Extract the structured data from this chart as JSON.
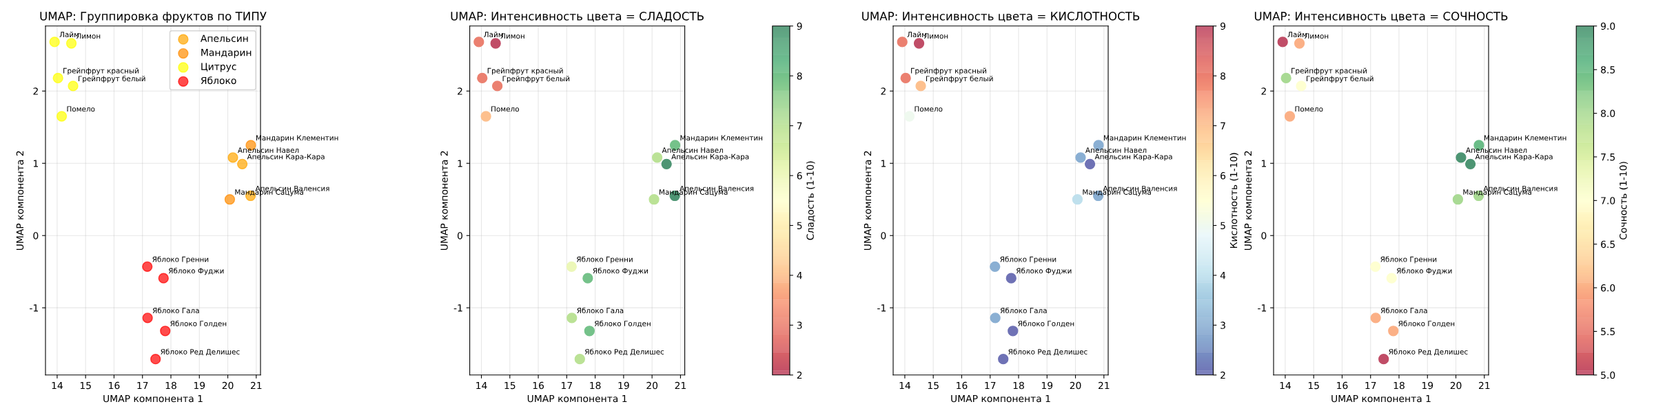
{
  "chart_data": [
    {
      "type": "scatter",
      "title": "UMAP: Группировка фруктов по ТИПУ",
      "xlabel": "UMAP компонента 1",
      "ylabel": "UMAP компонента 2",
      "xlim": [
        13.59,
        21.15
      ],
      "ylim": [
        -1.93,
        2.9
      ],
      "xticks": [
        14,
        15,
        16,
        17,
        18,
        19,
        20,
        21
      ],
      "yticks": [
        -1,
        0,
        1,
        2
      ],
      "grid": true,
      "marker": "circle",
      "legend": "top right",
      "series": [
        {
          "name": "Апельсин",
          "color": "#ffa500",
          "x": [
            20.18,
            20.51,
            20.8
          ],
          "values": [
            1.08,
            0.99,
            0.55
          ]
        },
        {
          "name": "Мандарин",
          "color": "#ff8c00",
          "x": [
            20.81,
            20.07
          ],
          "values": [
            1.25,
            0.5
          ]
        },
        {
          "name": "Цитрус",
          "color": "#ffff00",
          "x": [
            13.91,
            14.5,
            14.03,
            14.56,
            14.16
          ],
          "values": [
            2.68,
            2.66,
            2.18,
            2.07,
            1.65
          ]
        },
        {
          "name": "Яблоко",
          "color": "#ff0000",
          "x": [
            17.17,
            17.74,
            17.18,
            17.8,
            17.46
          ],
          "values": [
            -0.43,
            -0.59,
            -1.14,
            -1.32,
            -1.71
          ]
        }
      ],
      "annotations": [
        {
          "text": "Лайм",
          "x": 13.91,
          "y": 2.68
        },
        {
          "text": "Лимон",
          "x": 14.5,
          "y": 2.66
        },
        {
          "text": "Грейпфрут красный",
          "x": 14.03,
          "y": 2.18
        },
        {
          "text": "Грейпфрут белый",
          "x": 14.56,
          "y": 2.07
        },
        {
          "text": "Помело",
          "x": 14.16,
          "y": 1.65
        },
        {
          "text": "Мандарин Клементин",
          "x": 20.81,
          "y": 1.25
        },
        {
          "text": "Апельсин Навел",
          "x": 20.18,
          "y": 1.08
        },
        {
          "text": "Апельсин Кара-Кара",
          "x": 20.51,
          "y": 0.99
        },
        {
          "text": "Мандарин Сацума",
          "x": 20.07,
          "y": 0.5
        },
        {
          "text": "Апельсин Валенсия",
          "x": 20.8,
          "y": 0.55
        },
        {
          "text": "Яблоко Гренни",
          "x": 17.17,
          "y": -0.43
        },
        {
          "text": "Яблоко Фуджи",
          "x": 17.74,
          "y": -0.59
        },
        {
          "text": "Яблоко Гала",
          "x": 17.18,
          "y": -1.14
        },
        {
          "text": "Яблоко Голден",
          "x": 17.8,
          "y": -1.32
        },
        {
          "text": "Яблоко Ред Делишес",
          "x": 17.46,
          "y": -1.71
        }
      ]
    },
    {
      "type": "scatter",
      "title": "UMAP: Интенсивность цвета = СЛАДОСТЬ",
      "xlabel": "UMAP компонента 1",
      "ylabel": "UMAP компонента 2",
      "clabel": "Сладость (1-10)",
      "xlim": [
        13.59,
        21.15
      ],
      "ylim": [
        -1.93,
        2.9
      ],
      "xticks": [
        14,
        15,
        16,
        17,
        18,
        19,
        20,
        21
      ],
      "yticks": [
        -1,
        0,
        1,
        2
      ],
      "grid": true,
      "marker": "circle",
      "clim": [
        2,
        9
      ],
      "cticks": [
        2,
        3,
        4,
        5,
        6,
        7,
        8,
        9
      ],
      "series": [
        {
          "x": [
            13.91,
            14.5,
            14.03,
            14.56,
            14.16,
            20.81,
            20.18,
            20.51,
            20.07,
            20.8,
            17.17,
            17.74,
            17.18,
            17.8,
            17.46
          ],
          "values": [
            2.68,
            2.66,
            2.18,
            2.07,
            1.65,
            1.25,
            1.08,
            0.99,
            0.5,
            0.55,
            -0.43,
            -0.59,
            -1.14,
            -1.32,
            -1.71
          ],
          "cvalues": [
            3,
            2,
            3,
            3,
            4,
            8,
            7,
            9,
            7,
            9,
            6,
            8,
            7,
            8,
            7
          ]
        }
      ],
      "annotations": [
        {
          "text": "Лайм",
          "x": 13.91,
          "y": 2.68
        },
        {
          "text": "Лимон",
          "x": 14.5,
          "y": 2.66
        },
        {
          "text": "Грейпфрут красный",
          "x": 14.03,
          "y": 2.18
        },
        {
          "text": "Грейпфрут белый",
          "x": 14.56,
          "y": 2.07
        },
        {
          "text": "Помело",
          "x": 14.16,
          "y": 1.65
        },
        {
          "text": "Мандарин Клементин",
          "x": 20.81,
          "y": 1.25
        },
        {
          "text": "Апельсин Навел",
          "x": 20.18,
          "y": 1.08
        },
        {
          "text": "Апельсин Кара-Кара",
          "x": 20.51,
          "y": 0.99
        },
        {
          "text": "Мандарин Сацума",
          "x": 20.07,
          "y": 0.5
        },
        {
          "text": "Апельсин Валенсия",
          "x": 20.8,
          "y": 0.55
        },
        {
          "text": "Яблоко Гренни",
          "x": 17.17,
          "y": -0.43
        },
        {
          "text": "Яблоко Фуджи",
          "x": 17.74,
          "y": -0.59
        },
        {
          "text": "Яблоко Гала",
          "x": 17.18,
          "y": -1.14
        },
        {
          "text": "Яблоко Голден",
          "x": 17.8,
          "y": -1.32
        },
        {
          "text": "Яблоко Ред Делишес",
          "x": 17.46,
          "y": -1.71
        }
      ]
    },
    {
      "type": "scatter",
      "title": "UMAP: Интенсивность цвета = КИСЛОТНОСТЬ",
      "xlabel": "UMAP компонента 1",
      "ylabel": "UMAP компонента 2",
      "clabel": "Кислотность (1-10)",
      "xlim": [
        13.59,
        21.15
      ],
      "ylim": [
        -1.93,
        2.9
      ],
      "xticks": [
        14,
        15,
        16,
        17,
        18,
        19,
        20,
        21
      ],
      "yticks": [
        -1,
        0,
        1,
        2
      ],
      "grid": true,
      "marker": "circle",
      "clim": [
        2,
        9
      ],
      "cticks": [
        2,
        3,
        4,
        5,
        6,
        7,
        8,
        9
      ],
      "series": [
        {
          "x": [
            13.91,
            14.5,
            14.03,
            14.56,
            14.16,
            20.81,
            20.18,
            20.51,
            20.07,
            20.8,
            17.17,
            17.74,
            17.18,
            17.8,
            17.46
          ],
          "values": [
            2.68,
            2.66,
            2.18,
            2.07,
            1.65,
            1.25,
            1.08,
            0.99,
            0.5,
            0.55,
            -0.43,
            -0.59,
            -1.14,
            -1.32,
            -1.71
          ],
          "cvalues": [
            8,
            9,
            8,
            7,
            5,
            3,
            3,
            2,
            4,
            3,
            3,
            2,
            3,
            2,
            2
          ]
        }
      ],
      "annotations": [
        {
          "text": "Лайм",
          "x": 13.91,
          "y": 2.68
        },
        {
          "text": "Лимон",
          "x": 14.5,
          "y": 2.66
        },
        {
          "text": "Грейпфрут красный",
          "x": 14.03,
          "y": 2.18
        },
        {
          "text": "Грейпфрут белый",
          "x": 14.56,
          "y": 2.07
        },
        {
          "text": "Помело",
          "x": 14.16,
          "y": 1.65
        },
        {
          "text": "Мандарин Клементин",
          "x": 20.81,
          "y": 1.25
        },
        {
          "text": "Апельсин Навел",
          "x": 20.18,
          "y": 1.08
        },
        {
          "text": "Апельсин Кара-Кара",
          "x": 20.51,
          "y": 0.99
        },
        {
          "text": "Мандарин Сацума",
          "x": 20.07,
          "y": 0.5
        },
        {
          "text": "Апельсин Валенсия",
          "x": 20.8,
          "y": 0.55
        },
        {
          "text": "Яблоко Гренни",
          "x": 17.17,
          "y": -0.43
        },
        {
          "text": "Яблоко Фуджи",
          "x": 17.74,
          "y": -0.59
        },
        {
          "text": "Яблоко Гала",
          "x": 17.18,
          "y": -1.14
        },
        {
          "text": "Яблоко Голден",
          "x": 17.8,
          "y": -1.32
        },
        {
          "text": "Яблоко Ред Делишес",
          "x": 17.46,
          "y": -1.71
        }
      ]
    },
    {
      "type": "scatter",
      "title": "UMAP: Интенсивность цвета = СОЧНОСТЬ",
      "xlabel": "UMAP компонента 1",
      "ylabel": "UMAP компонента 2",
      "clabel": "Сочность (1-10)",
      "xlim": [
        13.59,
        21.15
      ],
      "ylim": [
        -1.93,
        2.9
      ],
      "xticks": [
        14,
        15,
        16,
        17,
        18,
        19,
        20,
        21
      ],
      "yticks": [
        -1,
        0,
        1,
        2
      ],
      "grid": true,
      "marker": "circle",
      "clim": [
        5,
        9
      ],
      "cticks": [
        {
          "value": 5,
          "label": "5.0"
        },
        5.5,
        {
          "value": 6,
          "label": "6.0"
        },
        6.5,
        {
          "value": 7,
          "label": "7.0"
        },
        7.5,
        {
          "value": 8,
          "label": "8.0"
        },
        8.5,
        {
          "value": 9,
          "label": "9.0"
        }
      ],
      "series": [
        {
          "x": [
            13.91,
            14.5,
            14.03,
            14.56,
            14.16,
            20.81,
            20.18,
            20.51,
            20.07,
            20.8,
            17.17,
            17.74,
            17.18,
            17.8,
            17.46
          ],
          "values": [
            2.68,
            2.66,
            2.18,
            2.07,
            1.65,
            1.25,
            1.08,
            0.99,
            0.5,
            0.55,
            -0.43,
            -0.59,
            -1.14,
            -1.32,
            -1.71
          ],
          "cvalues": [
            5,
            6,
            8,
            7,
            6,
            8.5,
            9,
            9,
            8,
            8,
            7,
            7,
            6,
            6,
            5
          ]
        }
      ],
      "annotations": [
        {
          "text": "Лайм",
          "x": 13.91,
          "y": 2.68
        },
        {
          "text": "Лимон",
          "x": 14.5,
          "y": 2.66
        },
        {
          "text": "Грейпфрут красный",
          "x": 14.03,
          "y": 2.18
        },
        {
          "text": "Грейпфрут белый",
          "x": 14.56,
          "y": 2.07
        },
        {
          "text": "Помело",
          "x": 14.16,
          "y": 1.65
        },
        {
          "text": "Мандарин Клементин",
          "x": 20.81,
          "y": 1.25
        },
        {
          "text": "Апельсин Навел",
          "x": 20.18,
          "y": 1.08
        },
        {
          "text": "Апельсин Кара-Кара",
          "x": 20.51,
          "y": 0.99
        },
        {
          "text": "Мандарин Сацума",
          "x": 20.07,
          "y": 0.5
        },
        {
          "text": "Апельсин Валенсия",
          "x": 20.8,
          "y": 0.55
        },
        {
          "text": "Яблоко Гренни",
          "x": 17.17,
          "y": -0.43
        },
        {
          "text": "Яблоко Фуджи",
          "x": 17.74,
          "y": -0.59
        },
        {
          "text": "Яблоко Гала",
          "x": 17.18,
          "y": -1.14
        },
        {
          "text": "Яблоко Голден",
          "x": 17.8,
          "y": -1.32
        },
        {
          "text": "Яблоко Ред Делишес",
          "x": 17.46,
          "y": -1.71
        }
      ]
    }
  ]
}
